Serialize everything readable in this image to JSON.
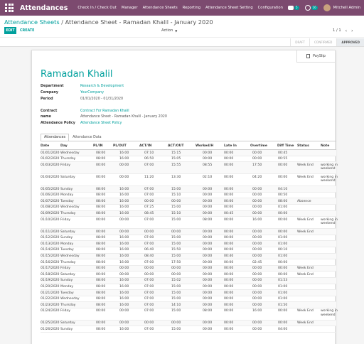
{
  "app": {
    "title": "Attendances",
    "menu": [
      "Check In / Check Out",
      "Manager",
      "Attendance Sheets",
      "Reporting",
      "Attendance Sheet Setting",
      "Configuration"
    ],
    "messages_count": "5",
    "activities_count": "16",
    "user_name": "Mitchell Admin"
  },
  "breadcrumb": {
    "parent": "Attendance Sheets",
    "separator": "/",
    "current": "Attendance Sheet - Ramadan Khalil - January 2020"
  },
  "toolbar": {
    "edit_label": "EDIT",
    "create_label": "CREATE",
    "action_label": "Action",
    "pager": "1 / 1"
  },
  "status": {
    "stages": [
      "DRAFT",
      "CONFIRMED",
      "APPROVED"
    ],
    "active": "APPROVED"
  },
  "sheet": {
    "payslip_label": "PaySlip",
    "employee_name": "Ramadan Khalil",
    "fields": {
      "department_label": "Department",
      "department_value": "Research & Development",
      "company_label": "Company",
      "company_value": "YourCompany",
      "period_label": "Period",
      "period_value": "01/01/2020 - 01/31/2020",
      "contract_label": "Contract",
      "contract_value": "Contract For Ramadan Khalil",
      "name_label": "name",
      "name_value": "Attendance Sheet - Ramadan Khalil - January 2020",
      "policy_label": "Attendance Policy",
      "policy_value": "Attendance Sheet Policy"
    },
    "tabs": [
      "Attendances",
      "Attendance Data"
    ],
    "table": {
      "headers": [
        "Date",
        "Day",
        "PL/IN",
        "PL/OUT",
        "ACT/IN",
        "ACT/OUT",
        "Worked/H",
        "Late In",
        "Overtime",
        "Diff Time",
        "Status",
        "Note"
      ],
      "rows": [
        [
          "01/01/2020",
          "Wednesday",
          "08:00",
          "16:00",
          "07:10",
          "15:15",
          "00:00",
          "00:00",
          "00:00",
          "00:45",
          "",
          ""
        ],
        [
          "01/02/2020",
          "Thursday",
          "08:00",
          "16:00",
          "06:50",
          "15:05",
          "00:00",
          "00:00",
          "00:00",
          "00:55",
          "",
          ""
        ],
        [
          "01/03/2020",
          "Friday",
          "00:00",
          "00:00",
          "07:00",
          "15:55",
          "08:55",
          "00:00",
          "17:50",
          "00:00",
          "Week End",
          "working in weekend"
        ],
        [
          "01/04/2020",
          "Saturday",
          "00:00",
          "00:00",
          "11:20",
          "13:30",
          "02:10",
          "00:00",
          "04:20",
          "00:00",
          "Week End",
          "working in weekend"
        ],
        [
          "01/05/2020",
          "Sunday",
          "08:00",
          "16:00",
          "07:00",
          "15:00",
          "00:00",
          "00:00",
          "00:00",
          "04:10",
          "",
          ""
        ],
        [
          "01/06/2020",
          "Monday",
          "08:00",
          "16:00",
          "07:00",
          "15:10",
          "00:00",
          "00:00",
          "00:00",
          "00:50",
          "",
          ""
        ],
        [
          "01/07/2020",
          "Tuesday",
          "08:00",
          "16:00",
          "00:00",
          "00:00",
          "00:00",
          "00:00",
          "00:00",
          "08:00",
          "Absence",
          ""
        ],
        [
          "01/08/2020",
          "Wednesday",
          "08:00",
          "16:00",
          "07:25",
          "15:00",
          "00:00",
          "00:00",
          "00:00",
          "01:00",
          "",
          ""
        ],
        [
          "01/09/2020",
          "Thursday",
          "08:00",
          "16:00",
          "08:45",
          "15:10",
          "00:00",
          "00:45",
          "00:00",
          "00:00",
          "",
          ""
        ],
        [
          "01/10/2020",
          "Friday",
          "00:00",
          "00:00",
          "07:00",
          "15:00",
          "08:00",
          "00:00",
          "16:00",
          "00:00",
          "Week End",
          "working in weekend"
        ],
        [
          "01/11/2020",
          "Saturday",
          "00:00",
          "00:00",
          "00:00",
          "00:00",
          "00:00",
          "00:00",
          "00:00",
          "00:00",
          "Week End",
          ""
        ],
        [
          "01/12/2020",
          "Sunday",
          "08:00",
          "16:00",
          "07:00",
          "15:00",
          "00:00",
          "00:00",
          "00:00",
          "01:00",
          "",
          ""
        ],
        [
          "01/13/2020",
          "Monday",
          "08:00",
          "16:00",
          "07:00",
          "15:00",
          "00:00",
          "00:00",
          "00:00",
          "01:00",
          "",
          ""
        ],
        [
          "01/14/2020",
          "Tuesday",
          "08:00",
          "16:00",
          "06:40",
          "15:50",
          "00:00",
          "00:00",
          "00:00",
          "00:10",
          "",
          ""
        ],
        [
          "01/15/2020",
          "Wednesday",
          "08:00",
          "16:00",
          "08:40",
          "15:00",
          "00:00",
          "00:40",
          "00:00",
          "01:00",
          "",
          ""
        ],
        [
          "01/16/2020",
          "Thursday",
          "08:00",
          "16:00",
          "07:00",
          "17:50",
          "00:00",
          "00:00",
          "02:45",
          "00:00",
          "",
          ""
        ],
        [
          "01/17/2020",
          "Friday",
          "00:00",
          "00:00",
          "00:00",
          "00:00",
          "00:00",
          "00:00",
          "00:00",
          "00:00",
          "Week End",
          ""
        ],
        [
          "01/18/2020",
          "Saturday",
          "00:00",
          "00:00",
          "00:00",
          "00:00",
          "00:00",
          "00:00",
          "00:00",
          "00:00",
          "Week End",
          ""
        ],
        [
          "01/19/2020",
          "Sunday",
          "08:00",
          "16:00",
          "07:00",
          "15:02",
          "00:00",
          "00:00",
          "00:00",
          "01:53",
          "",
          ""
        ],
        [
          "01/20/2020",
          "Monday",
          "08:00",
          "16:00",
          "07:00",
          "15:00",
          "00:00",
          "00:00",
          "00:00",
          "01:00",
          "",
          ""
        ],
        [
          "01/21/2020",
          "Tuesday",
          "08:00",
          "16:00",
          "07:00",
          "15:00",
          "00:00",
          "00:00",
          "00:00",
          "01:00",
          "",
          ""
        ],
        [
          "01/22/2020",
          "Wednesday",
          "08:00",
          "16:00",
          "07:00",
          "15:00",
          "00:00",
          "00:00",
          "00:00",
          "01:00",
          "",
          ""
        ],
        [
          "01/23/2020",
          "Thursday",
          "08:00",
          "16:00",
          "07:00",
          "14:10",
          "00:00",
          "00:00",
          "00:00",
          "01:50",
          "",
          ""
        ],
        [
          "01/24/2020",
          "Friday",
          "00:00",
          "00:00",
          "07:00",
          "15:00",
          "08:00",
          "00:00",
          "16:00",
          "00:00",
          "Week End",
          "working in weekend"
        ],
        [
          "01/25/2020",
          "Saturday",
          "00:00",
          "00:00",
          "00:00",
          "00:00",
          "00:00",
          "00:00",
          "00:00",
          "00:00",
          "Week End",
          ""
        ],
        [
          "01/26/2020",
          "Sunday",
          "08:00",
          "16:00",
          "07:00",
          "15:00",
          "00:00",
          "00:00",
          "00:00",
          "04:00",
          "",
          ""
        ]
      ]
    }
  }
}
